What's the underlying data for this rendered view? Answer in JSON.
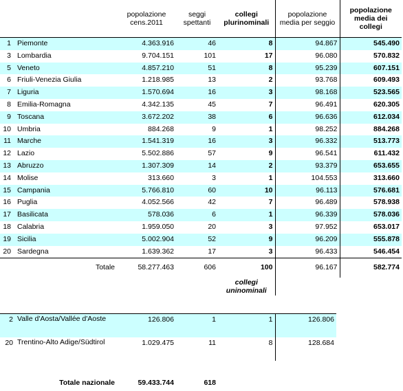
{
  "headers": {
    "pop": "popolazione cens.2011",
    "seggi": "seggi spettanti",
    "collegi": "collegi plurinominali",
    "media": "popolazione media per seggio",
    "media_collegi": "popolazione media dei collegi"
  },
  "rows": [
    {
      "n": "1",
      "region": "Piemonte",
      "pop": "4.363.916",
      "seggi": "46",
      "collegi": "8",
      "media": "94.867",
      "mc": "545.490"
    },
    {
      "n": "3",
      "region": "Lombardia",
      "pop": "9.704.151",
      "seggi": "101",
      "collegi": "17",
      "media": "96.080",
      "mc": "570.832"
    },
    {
      "n": "5",
      "region": "Veneto",
      "pop": "4.857.210",
      "seggi": "51",
      "collegi": "8",
      "media": "95.239",
      "mc": "607.151"
    },
    {
      "n": "6",
      "region": "Friuli-Venezia Giulia",
      "pop": "1.218.985",
      "seggi": "13",
      "collegi": "2",
      "media": "93.768",
      "mc": "609.493"
    },
    {
      "n": "7",
      "region": "Liguria",
      "pop": "1.570.694",
      "seggi": "16",
      "collegi": "3",
      "media": "98.168",
      "mc": "523.565"
    },
    {
      "n": "8",
      "region": "Emilia-Romagna",
      "pop": "4.342.135",
      "seggi": "45",
      "collegi": "7",
      "media": "96.491",
      "mc": "620.305"
    },
    {
      "n": "9",
      "region": "Toscana",
      "pop": "3.672.202",
      "seggi": "38",
      "collegi": "6",
      "media": "96.636",
      "mc": "612.034"
    },
    {
      "n": "10",
      "region": "Umbria",
      "pop": "884.268",
      "seggi": "9",
      "collegi": "1",
      "media": "98.252",
      "mc": "884.268"
    },
    {
      "n": "11",
      "region": "Marche",
      "pop": "1.541.319",
      "seggi": "16",
      "collegi": "3",
      "media": "96.332",
      "mc": "513.773"
    },
    {
      "n": "12",
      "region": "Lazio",
      "pop": "5.502.886",
      "seggi": "57",
      "collegi": "9",
      "media": "96.541",
      "mc": "611.432"
    },
    {
      "n": "13",
      "region": "Abruzzo",
      "pop": "1.307.309",
      "seggi": "14",
      "collegi": "2",
      "media": "93.379",
      "mc": "653.655"
    },
    {
      "n": "14",
      "region": "Molise",
      "pop": "313.660",
      "seggi": "3",
      "collegi": "1",
      "media": "104.553",
      "mc": "313.660"
    },
    {
      "n": "15",
      "region": "Campania",
      "pop": "5.766.810",
      "seggi": "60",
      "collegi": "10",
      "media": "96.113",
      "mc": "576.681"
    },
    {
      "n": "16",
      "region": "Puglia",
      "pop": "4.052.566",
      "seggi": "42",
      "collegi": "7",
      "media": "96.489",
      "mc": "578.938"
    },
    {
      "n": "17",
      "region": "Basilicata",
      "pop": "578.036",
      "seggi": "6",
      "collegi": "1",
      "media": "96.339",
      "mc": "578.036"
    },
    {
      "n": "18",
      "region": "Calabria",
      "pop": "1.959.050",
      "seggi": "20",
      "collegi": "3",
      "media": "97.952",
      "mc": "653.017"
    },
    {
      "n": "19",
      "region": "Sicilia",
      "pop": "5.002.904",
      "seggi": "52",
      "collegi": "9",
      "media": "96.209",
      "mc": "555.878"
    },
    {
      "n": "20",
      "region": "Sardegna",
      "pop": "1.639.362",
      "seggi": "17",
      "collegi": "3",
      "media": "96.433",
      "mc": "546.454"
    }
  ],
  "totale": {
    "label": "Totale",
    "pop": "58.277.463",
    "seggi": "606",
    "collegi": "100",
    "media": "96.167",
    "mc": "582.774"
  },
  "uninominali_header": "collegi uninominali",
  "lower_rows": [
    {
      "n": "2",
      "region": "Valle d'Aosta/Vallée d'Aoste",
      "pop": "126.806",
      "seggi": "1",
      "collegi": "1",
      "media": "126.806"
    },
    {
      "n": "20",
      "region": "Trentino-Alto Adige/Südtirol",
      "pop": "1.029.475",
      "seggi": "11",
      "collegi": "8",
      "media": "128.684"
    }
  ],
  "totale_nazionale": {
    "label": "Totale nazionale",
    "pop": "59.433.744",
    "seggi": "618"
  }
}
